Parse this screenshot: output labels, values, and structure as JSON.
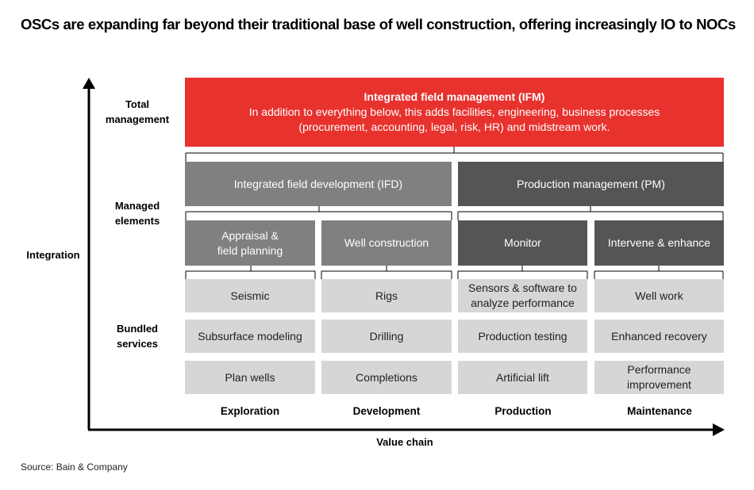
{
  "title": "OSCs are expanding far beyond their traditional base of well construction, offering increasingly IO to NOCs",
  "axes": {
    "y_label": "Integration",
    "x_label": "Value chain"
  },
  "row_labels": {
    "total": [
      "Total",
      "management"
    ],
    "managed": [
      "Managed",
      "elements"
    ],
    "bundled": [
      "Bundled",
      "services"
    ]
  },
  "ifm": {
    "title": "Integrated field management (IFM)",
    "desc1": "In addition to everything below, this adds facilities, engineering, business processes",
    "desc2": "(procurement, accounting, legal, risk, HR) and midstream work."
  },
  "level2": {
    "ifd": "Integrated field development (IFD)",
    "pm": "Production management (PM)"
  },
  "level3": {
    "appraisal": [
      "Appraisal &",
      "field planning"
    ],
    "well_construction": "Well construction",
    "monitor": "Monitor",
    "intervene": "Intervene & enhance"
  },
  "services": {
    "exploration": [
      "Seismic",
      "Subsurface modeling",
      "Plan wells"
    ],
    "development": [
      "Rigs",
      "Drilling",
      "Completions"
    ],
    "production": [
      [
        "Sensors & software to",
        "analyze performance"
      ],
      "Production testing",
      "Artificial lift"
    ],
    "maintenance": [
      "Well work",
      "Enhanced recovery",
      [
        "Performance",
        "improvement"
      ]
    ]
  },
  "stages": [
    "Exploration",
    "Development",
    "Production",
    "Maintenance"
  ],
  "source": "Source: Bain & Company",
  "colors": {
    "red": "#e8322e",
    "mid_grey": "#808080",
    "dark_grey": "#555555",
    "light_grey": "#d6d6d6"
  }
}
